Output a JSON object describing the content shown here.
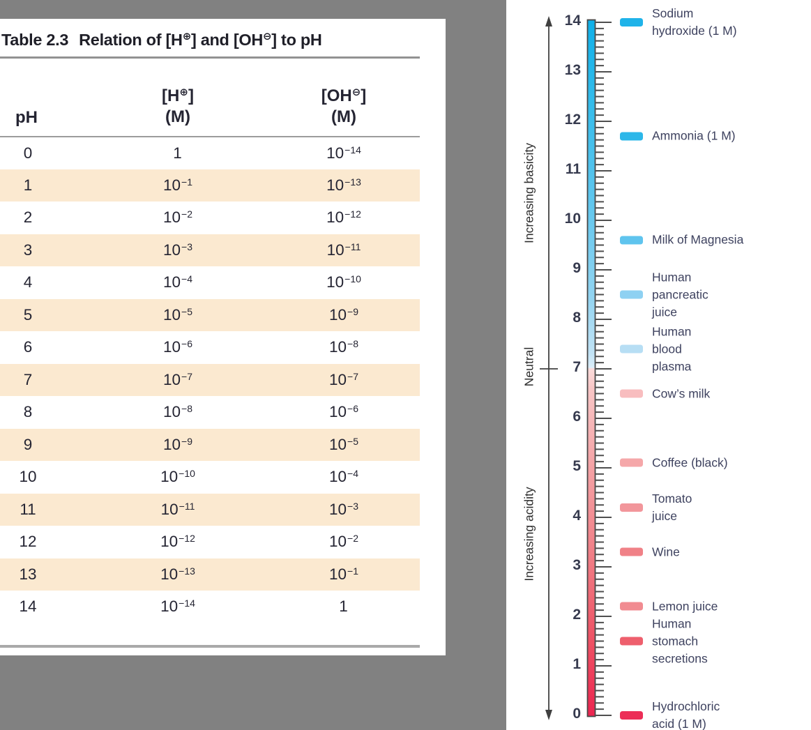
{
  "page": {
    "background": "#818181",
    "panel_background": "#ffffff"
  },
  "table": {
    "title": {
      "label": "Table 2.3",
      "t1": "Relation of [H",
      "sup1": "⊕",
      "t2": "] and [OH",
      "sup2": "⊖",
      "t3": "] to pH"
    },
    "columns": {
      "ph": "pH",
      "h": {
        "t1": "[H",
        "sup": "⊕",
        "t2": "]",
        "unit": "(M)"
      },
      "oh": {
        "t1": "[OH",
        "sup": "⊖",
        "t2": "]",
        "unit": "(M)"
      }
    },
    "stripe_color": "#fbe9d0",
    "rows": [
      {
        "ph": "0",
        "h_base": "1",
        "h_exp": "",
        "oh_base": "10",
        "oh_exp": "−14"
      },
      {
        "ph": "1",
        "h_base": "10",
        "h_exp": "−1",
        "oh_base": "10",
        "oh_exp": "−13"
      },
      {
        "ph": "2",
        "h_base": "10",
        "h_exp": "−2",
        "oh_base": "10",
        "oh_exp": "−12"
      },
      {
        "ph": "3",
        "h_base": "10",
        "h_exp": "−3",
        "oh_base": "10",
        "oh_exp": "−11"
      },
      {
        "ph": "4",
        "h_base": "10",
        "h_exp": "−4",
        "oh_base": "10",
        "oh_exp": "−10"
      },
      {
        "ph": "5",
        "h_base": "10",
        "h_exp": "−5",
        "oh_base": "10",
        "oh_exp": "−9"
      },
      {
        "ph": "6",
        "h_base": "10",
        "h_exp": "−6",
        "oh_base": "10",
        "oh_exp": "−8"
      },
      {
        "ph": "7",
        "h_base": "10",
        "h_exp": "−7",
        "oh_base": "10",
        "oh_exp": "−7"
      },
      {
        "ph": "8",
        "h_base": "10",
        "h_exp": "−8",
        "oh_base": "10",
        "oh_exp": "−6"
      },
      {
        "ph": "9",
        "h_base": "10",
        "h_exp": "−9",
        "oh_base": "10",
        "oh_exp": "−5"
      },
      {
        "ph": "10",
        "h_base": "10",
        "h_exp": "−10",
        "oh_base": "10",
        "oh_exp": "−4"
      },
      {
        "ph": "11",
        "h_base": "10",
        "h_exp": "−11",
        "oh_base": "10",
        "oh_exp": "−3"
      },
      {
        "ph": "12",
        "h_base": "10",
        "h_exp": "−12",
        "oh_base": "10",
        "oh_exp": "−2"
      },
      {
        "ph": "13",
        "h_base": "10",
        "h_exp": "−13",
        "oh_base": "10",
        "oh_exp": "−1"
      },
      {
        "ph": "14",
        "h_base": "10",
        "h_exp": "−14",
        "oh_base": "1",
        "oh_exp": ""
      }
    ]
  },
  "figure": {
    "axis": {
      "top_label": "Increasing basicity",
      "mid_label": "Neutral",
      "bottom_label": "Increasing acidity"
    },
    "scale": {
      "min": 0,
      "max": 14,
      "neutral_ph": 7,
      "tick_labels": [
        "14",
        "13",
        "12",
        "11",
        "10",
        "9",
        "8",
        "7",
        "6",
        "5",
        "4",
        "3",
        "2",
        "1",
        "0"
      ],
      "gradient": [
        {
          "offset": "0%",
          "color": "#0fb0e9"
        },
        {
          "offset": "12%",
          "color": "#35bceb"
        },
        {
          "offset": "26%",
          "color": "#5fc6ee"
        },
        {
          "offset": "40%",
          "color": "#93d4f1"
        },
        {
          "offset": "48%",
          "color": "#c2e3f5"
        },
        {
          "offset": "49.9%",
          "color": "#dceef9"
        },
        {
          "offset": "50.1%",
          "color": "#fbdcdb"
        },
        {
          "offset": "53%",
          "color": "#f8c6c6"
        },
        {
          "offset": "64%",
          "color": "#f4a3a6"
        },
        {
          "offset": "77%",
          "color": "#f07e86"
        },
        {
          "offset": "89%",
          "color": "#ee5365"
        },
        {
          "offset": "100%",
          "color": "#ec2550"
        }
      ]
    },
    "substances": [
      {
        "name": "Sodium\nhydroxide (1 M)",
        "ph": 14,
        "color": "#1fb3e9"
      },
      {
        "name": "Ammonia (1 M)",
        "ph": 11.7,
        "color": "#2cb7e9"
      },
      {
        "name": "Milk of Magnesia",
        "ph": 9.6,
        "color": "#5fc4ee"
      },
      {
        "name": "Human\npancreatic\njuice",
        "ph": 8.5,
        "color": "#8ed1f2"
      },
      {
        "name": "Human\nblood\nplasma",
        "ph": 7.4,
        "color": "#b7def4"
      },
      {
        "name": "Cow’s milk",
        "ph": 6.5,
        "color": "#f8bdbf"
      },
      {
        "name": "Coffee (black)",
        "ph": 5.1,
        "color": "#f5a7a9"
      },
      {
        "name": "Tomato\njuice",
        "ph": 4.2,
        "color": "#f2969b"
      },
      {
        "name": "Wine",
        "ph": 3.3,
        "color": "#f08187"
      },
      {
        "name": "Lemon juice",
        "ph": 2.2,
        "color": "#f18b91"
      },
      {
        "name": "Human\nstomach\nsecretions",
        "ph": 1.5,
        "color": "#ee5f6d"
      },
      {
        "name": "Hydrochloric\nacid (1 M)",
        "ph": 0,
        "color": "#ec2e57"
      }
    ]
  },
  "chart_data": {
    "type": "scale",
    "title": "pH scale with common substances",
    "axis_range": [
      0,
      14
    ],
    "neutral_ph": 7,
    "annotations": [
      "Increasing basicity",
      "Neutral",
      "Increasing acidity"
    ],
    "points": [
      {
        "label": "Sodium hydroxide (1 M)",
        "ph": 14
      },
      {
        "label": "Ammonia (1 M)",
        "ph": 11.7
      },
      {
        "label": "Milk of Magnesia",
        "ph": 9.6
      },
      {
        "label": "Human pancreatic juice",
        "ph": 8.5
      },
      {
        "label": "Human blood plasma",
        "ph": 7.4
      },
      {
        "label": "Cow’s milk",
        "ph": 6.5
      },
      {
        "label": "Coffee (black)",
        "ph": 5.1
      },
      {
        "label": "Tomato juice",
        "ph": 4.2
      },
      {
        "label": "Wine",
        "ph": 3.3
      },
      {
        "label": "Lemon juice",
        "ph": 2.2
      },
      {
        "label": "Human stomach secretions",
        "ph": 1.5
      },
      {
        "label": "Hydrochloric acid (1 M)",
        "ph": 0
      }
    ]
  }
}
